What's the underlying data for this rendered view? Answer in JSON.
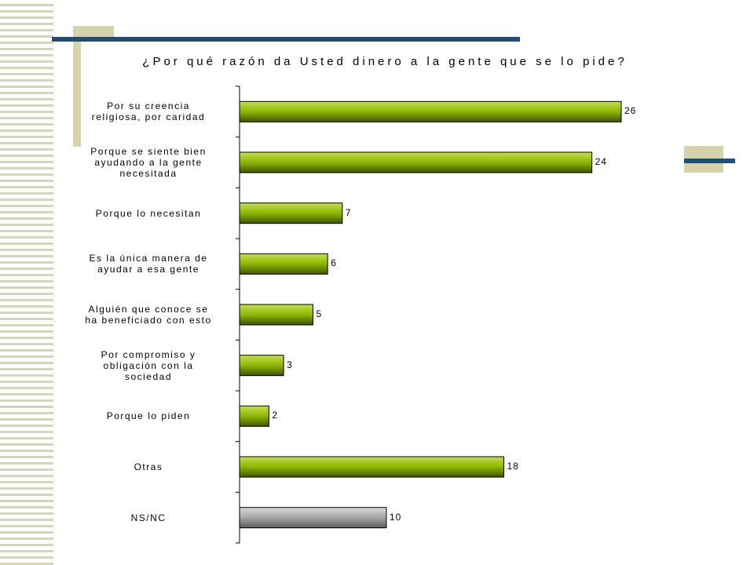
{
  "chart_data": {
    "type": "bar",
    "orientation": "horizontal",
    "title": "¿Por qué razón da Usted dinero a la gente que se lo pide?",
    "categories": [
      "Por su creencia religiosa, por caridad",
      "Porque se siente bien ayudando a la gente necesitada",
      "Porque lo necesitan",
      "Es la única manera de ayudar a esa gente",
      "Alguién que conoce se ha beneficiado con esto",
      "Por compromiso y obligación con la sociedad",
      "Porque lo piden",
      "Otras",
      "NS/NC"
    ],
    "label_lines": [
      [
        "Por su creencia",
        "religiosa, por caridad"
      ],
      [
        "Porque se siente bien",
        "ayudando a la gente",
        "necesitada"
      ],
      [
        "Porque lo necesitan"
      ],
      [
        "Es la única manera de",
        "ayudar a esa gente"
      ],
      [
        "Alguién que conoce se",
        "ha beneficiado con esto"
      ],
      [
        "Por compromiso y",
        "obligación con la",
        "sociedad"
      ],
      [
        "Porque lo piden"
      ],
      [
        "Otras"
      ],
      [
        "NS/NC"
      ]
    ],
    "values": [
      26,
      24,
      7,
      6,
      5,
      3,
      2,
      18,
      10
    ],
    "bar_colors": [
      "#8db600",
      "#8db600",
      "#8db600",
      "#8db600",
      "#8db600",
      "#8db600",
      "#8db600",
      "#8db600",
      "#9a9a9a"
    ],
    "xlim": [
      0,
      28
    ],
    "data_labels": true,
    "grid": false,
    "legend": "none"
  },
  "theme": {
    "accent_navy": "#1f4e79",
    "accent_khaki": "#d6d3aa"
  }
}
